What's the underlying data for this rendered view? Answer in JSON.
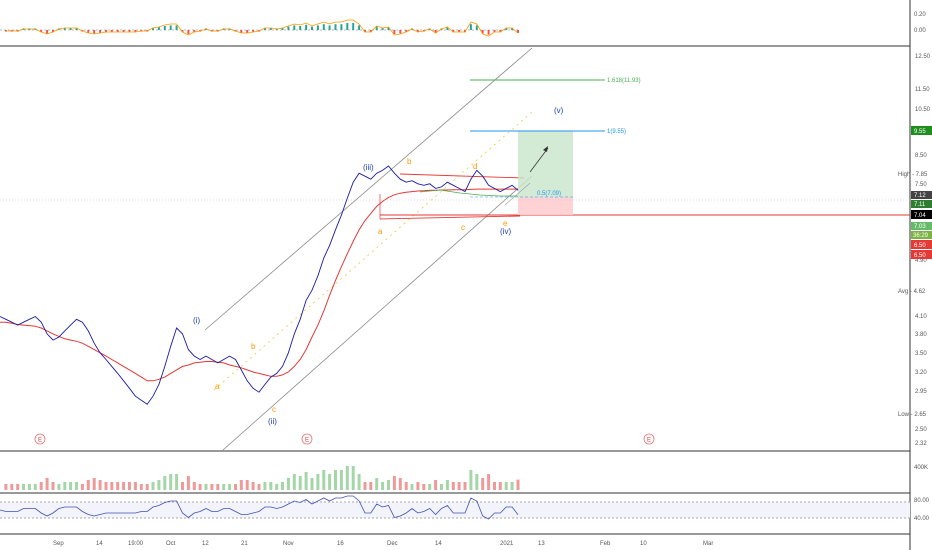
{
  "chart_data": {
    "type": "line",
    "title": "",
    "price_scale": {
      "ticks": [
        "12.50",
        "11.50",
        "10.50",
        "9.55",
        "8.50",
        "7.85",
        "7.50",
        "7.12",
        "7.11",
        "7.04",
        "7.03",
        "6.50",
        "6.50",
        "4.90",
        "4.62",
        "4.10",
        "3.80",
        "3.50",
        "3.20",
        "2.95",
        "2.65",
        "2.50",
        "2.32"
      ],
      "ylim": [
        2.2,
        13.2
      ],
      "grid": false
    },
    "oscillator_top": {
      "ticks": [
        "0.20",
        "0.00"
      ]
    },
    "volume_pane": {
      "ticks": [
        "400K"
      ]
    },
    "rsi_pane": {
      "ticks": [
        "80.00",
        "40.00"
      ]
    },
    "x_ticks": [
      "Sep",
      "14",
      "19:00",
      "Oct",
      "12",
      "21",
      "Nov",
      "16",
      "Dec",
      "14",
      "2021",
      "13",
      "Feb",
      "10",
      "Mar"
    ],
    "price_tags": {
      "target": "9.55",
      "high": "High - 7.85",
      "t1": "7.12",
      "t2": "7.11",
      "last": "7.04",
      "t3": "7.03",
      "countdown": "36:29",
      "stop1": "6.50",
      "stop2": "6.50",
      "avg": "Avg - 4.62",
      "low": "Low - 2.65"
    },
    "fib_levels": [
      {
        "label": "1.618(11.93)",
        "value": 11.93,
        "color": "#4caf50"
      },
      {
        "label": "1(9.55)",
        "value": 9.55,
        "color": "#2196f3"
      },
      {
        "label": "0.5(7.09)",
        "value": 7.09,
        "color": "#2196f3"
      }
    ],
    "wave_labels": [
      {
        "text": "(i)",
        "color": "#1f3fbf"
      },
      {
        "text": "(ii)",
        "color": "#1f3fbf"
      },
      {
        "text": "(iii)",
        "color": "#1f3fbf"
      },
      {
        "text": "(iv)",
        "color": "#1f3fbf"
      },
      {
        "text": "(v)",
        "color": "#1f3fbf"
      },
      {
        "text": "a",
        "color": "#ff9800"
      },
      {
        "text": "b",
        "color": "#ff9800"
      },
      {
        "text": "c",
        "color": "#ff9800"
      },
      {
        "text": "a",
        "color": "#ff9800"
      },
      {
        "text": "b",
        "color": "#ff9800"
      },
      {
        "text": "c",
        "color": "#ff9800"
      },
      {
        "text": "d",
        "color": "#ff9800"
      },
      {
        "text": "e",
        "color": "#ff9800"
      }
    ],
    "event_markers": [
      "E",
      "E",
      "E"
    ],
    "price_series": {
      "name": "",
      "color": "#1a1aa8",
      "values": [
        4.0,
        3.95,
        3.9,
        3.85,
        3.9,
        3.95,
        4.0,
        3.9,
        3.7,
        3.6,
        3.65,
        3.75,
        3.85,
        3.95,
        3.9,
        3.75,
        3.55,
        3.4,
        3.3,
        3.2,
        3.1,
        3.0,
        2.9,
        2.8,
        2.75,
        2.7,
        2.8,
        2.95,
        3.2,
        3.5,
        3.8,
        3.7,
        3.45,
        3.35,
        3.3,
        3.35,
        3.3,
        3.25,
        3.3,
        3.35,
        3.3,
        3.15,
        3.0,
        2.9,
        2.85,
        2.95,
        3.05,
        3.1,
        3.2,
        3.4,
        3.7,
        3.95,
        4.3,
        4.5,
        4.8,
        5.2,
        5.5,
        5.9,
        6.3,
        6.8,
        7.3,
        7.6,
        7.5,
        7.4,
        7.6,
        7.7,
        7.85,
        7.6,
        7.4,
        7.3,
        7.35,
        7.25,
        7.2,
        7.25,
        7.1,
        7.15,
        7.3,
        7.2,
        7.1,
        7.0,
        7.4,
        7.7,
        7.5,
        7.2,
        7.1,
        7.0,
        7.1,
        7.2,
        7.04
      ]
    },
    "ma_series": {
      "name": "",
      "color": "#e53935",
      "values": [
        3.9,
        3.9,
        3.88,
        3.86,
        3.85,
        3.84,
        3.83,
        3.8,
        3.75,
        3.7,
        3.66,
        3.62,
        3.6,
        3.58,
        3.55,
        3.5,
        3.45,
        3.4,
        3.35,
        3.3,
        3.25,
        3.2,
        3.15,
        3.1,
        3.05,
        3.0,
        3.0,
        3.02,
        3.05,
        3.1,
        3.15,
        3.2,
        3.22,
        3.25,
        3.26,
        3.27,
        3.27,
        3.26,
        3.25,
        3.22,
        3.2,
        3.18,
        3.15,
        3.12,
        3.1,
        3.08,
        3.06,
        3.06,
        3.08,
        3.12,
        3.2,
        3.3,
        3.45,
        3.65,
        3.85,
        4.1,
        4.4,
        4.7,
        5.0,
        5.3,
        5.6,
        5.9,
        6.15,
        6.35,
        6.55,
        6.7,
        6.82,
        6.9,
        6.95,
        6.98,
        7.0,
        7.02,
        7.03,
        7.04,
        7.04,
        7.05,
        7.05,
        7.06,
        7.06,
        7.06,
        7.07,
        7.08,
        7.08,
        7.08,
        7.08,
        7.08,
        7.08,
        7.08,
        7.08
      ]
    }
  }
}
